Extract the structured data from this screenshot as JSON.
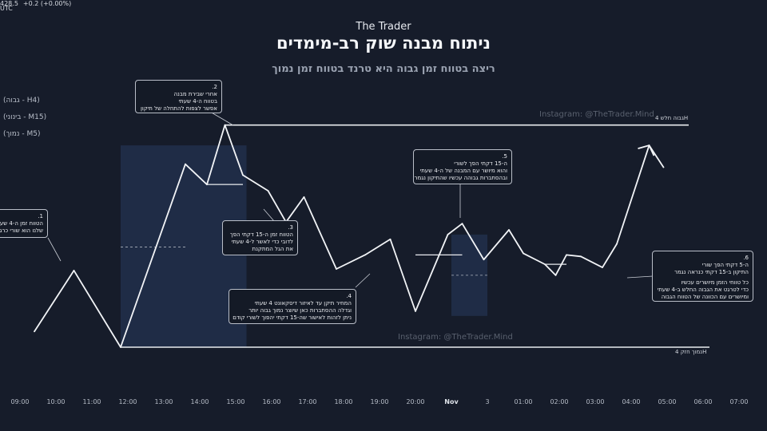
{
  "top_bar": {
    "price": "428.5",
    "change": "+0.2 (+0.00%)",
    "tz": "UTC"
  },
  "brand": "The Trader",
  "title": "ניתוח מבנה שוק רב-מימדים",
  "subtitle": "ריצה בטווח זמן גבוה היא טרנד בטווח זמן נמוך",
  "timeframes": [
    "(H4 - גבוה)",
    "(M15 - בינוני)",
    "(M5 - נמוך)"
  ],
  "watermarks": [
    "Instagram: @TheTrader.Mind",
    "Instagram: @TheTrader.Mind"
  ],
  "levels": {
    "high": "גבוה חלש 4H",
    "low": "נמוך חזק 4H"
  },
  "annotations": [
    {
      "num": "1.",
      "lines": [
        "הטווח זמן ה-4 שעתי",
        "שלנו הוא שורי כרגע"
      ]
    },
    {
      "num": "2.",
      "lines": [
        "אחרי שבירת מבנה",
        "בטווח ה-4 שעתי",
        "אפשר לצפות להתחלה של תיקון"
      ]
    },
    {
      "num": "3.",
      "lines": [
        "הטווח זמן ה-15 דקתי הפך",
        "לדובי כדי לאשר ל-4 שעתי",
        "את הגל המתקנת"
      ]
    },
    {
      "num": "4.",
      "lines": [
        "המחיר תיקן עד לאיזור דיסקאונט 4 שעתי",
        "וגדלה ההסתברות כאן שיוצר נמוך גבוה יותר",
        "ניתן לזהות לאישור שה-15 דקתי יהפוך לשורי קודם"
      ]
    },
    {
      "num": "5.",
      "lines": [
        "ה-15 דקתי הפך לשורי",
        "והוא מיושר עם המבנה של ה-4 שעתי",
        "ובהסתברות גבוהה עכשיו שהתיקון נגמר"
      ]
    },
    {
      "num": "6.",
      "lines": [
        "ה-5 דקתי הפך שורי",
        "התיקון ב-15 דקתי כנראה נגמר",
        "",
        "כל טווחי הזמן מיושרים עכשיו",
        "כדי לטרגט את הגבוה החלש ב-4 שעתי",
        "ומיושרים עם הכוונה של הטווח הגבוה"
      ]
    }
  ],
  "chart_data": {
    "type": "line",
    "x_ticks": [
      "09:00",
      "10:00",
      "11:00",
      "12:00",
      "13:00",
      "14:00",
      "15:00",
      "16:00",
      "17:00",
      "18:00",
      "19:00",
      "20:00",
      "Nov",
      "3",
      "01:00",
      "02:00",
      "03:00",
      "04:00",
      "05:00",
      "06:00",
      "07:00"
    ],
    "series": [
      {
        "x": [
          0.4,
          1.5,
          2.8,
          4.6,
          5.2,
          5.7,
          6.2,
          6.9,
          7.4,
          7.9,
          8.8,
          9.6,
          10.3,
          11.0,
          11.9,
          12.3,
          12.9,
          13.6,
          14.0,
          14.6,
          14.9,
          15.2,
          15.6,
          16.2,
          16.6,
          17.5,
          17.9
        ],
        "y": [
          10,
          49,
          0,
          117,
          104,
          142,
          110,
          100,
          80,
          96,
          50,
          59,
          69,
          23,
          72,
          79,
          56,
          75,
          60,
          53,
          46,
          59,
          58,
          51,
          66,
          129,
          115
        ]
      }
    ],
    "levels": {
      "weak_high": 142,
      "strong_low": 0
    },
    "zones": [
      {
        "x_from": 2.8,
        "x_to": 6.3,
        "y_from": 0,
        "y_to": 129
      },
      {
        "x_from": 12.0,
        "x_to": 13.0,
        "y_from": 20,
        "y_to": 72
      }
    ],
    "dashed": [
      {
        "x_from": 2.8,
        "x_to": 4.6,
        "y": 64
      },
      {
        "x_from": 12.0,
        "x_to": 13.0,
        "y": 46
      }
    ],
    "ranges": [
      {
        "x_from": 5.2,
        "x_to": 6.2,
        "y": 104
      },
      {
        "x_from": 11.0,
        "x_to": 12.3,
        "y": 59
      },
      {
        "x_from": 14.6,
        "x_to": 15.2,
        "y": 53
      }
    ],
    "ylim": [
      0,
      180
    ],
    "grid": false
  }
}
